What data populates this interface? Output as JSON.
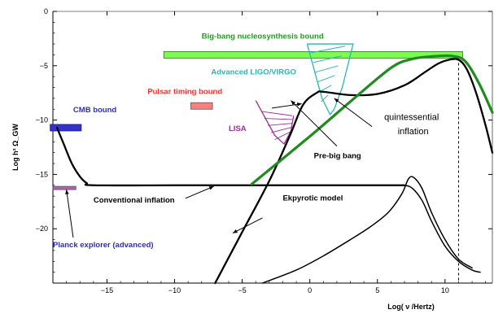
{
  "chart_data": {
    "type": "line",
    "xlabel": "Log( ν /Hertz)",
    "ylabel": "Log h² Ω_GW",
    "xlim": [
      -19,
      13.5
    ],
    "ylim": [
      -25,
      0
    ],
    "x_ticks": [
      -15,
      -10,
      -5,
      0,
      5,
      10
    ],
    "y_ticks": [
      0,
      -5,
      -10,
      -15,
      -20
    ],
    "grid": false,
    "series": [
      {
        "name": "Conventional inflation",
        "color": "#000000",
        "x": [
          -18.7,
          -18.2,
          -17.6,
          -17.0,
          -16.5,
          -16.0,
          -10.0,
          -5.0,
          0.0,
          5.0,
          7.0
        ],
        "y": [
          -10.7,
          -12.2,
          -14.0,
          -15.2,
          -15.8,
          -16.0,
          -16.0,
          -16.0,
          -16.0,
          -16.0,
          -16.0
        ]
      },
      {
        "name": "Pre-big bang",
        "color": "#000000",
        "x": [
          -7.0,
          -5.0,
          -3.0,
          -1.5,
          -0.5,
          0.5,
          1.0,
          3.0,
          5.0,
          7.0,
          8.5,
          9.5,
          10.3,
          11.0,
          11.6,
          12.3,
          13.0,
          13.5
        ],
        "y": [
          -25.0,
          -20.3,
          -15.6,
          -11.5,
          -8.6,
          -7.5,
          -7.4,
          -7.7,
          -7.6,
          -6.8,
          -5.6,
          -4.8,
          -4.45,
          -4.45,
          -5.3,
          -7.5,
          -10.5,
          -13.0
        ]
      },
      {
        "name": "quintessential inflation",
        "color": "#1e8c1e",
        "x": [
          -4.3,
          0.0,
          3.0,
          6.0,
          7.5,
          9.0,
          10.5,
          11.5,
          12.5,
          13.5
        ],
        "y": [
          -15.9,
          -11.5,
          -8.3,
          -5.2,
          -4.4,
          -4.15,
          -4.1,
          -4.6,
          -6.6,
          -9.3
        ]
      },
      {
        "name": "Ekpyrotic model",
        "color": "#000000",
        "x": [
          -3.5,
          -1.0,
          1.0,
          3.0,
          4.5,
          5.8,
          6.8,
          7.3,
          7.7,
          8.3,
          9.0,
          10.0,
          11.0,
          12.0
        ],
        "y": [
          -25.0,
          -23.8,
          -22.5,
          -21.0,
          -19.8,
          -18.5,
          -16.8,
          -15.4,
          -15.3,
          -16.3,
          -18.5,
          -21.0,
          -22.8,
          -23.6
        ]
      },
      {
        "name": "",
        "color": "#000000",
        "x": [
          6.8,
          7.5,
          8.3,
          9.0,
          10.0,
          11.0,
          12.0,
          12.6
        ],
        "y": [
          -16.0,
          -16.2,
          -17.4,
          -19.3,
          -21.6,
          -23.0,
          -23.8,
          -24.0
        ]
      }
    ],
    "bounds": [
      {
        "name": "Big-bang nucleosynthesis bound",
        "color": "#7cfc52",
        "x_range": [
          -10.8,
          11.3
        ],
        "y_range": [
          -3.7,
          -4.3
        ]
      },
      {
        "name": "Pulsar timing bound",
        "color": "#ff7f7f",
        "x_range": [
          -8.8,
          -7.2
        ],
        "y_range": [
          -8.4,
          -9.0
        ]
      },
      {
        "name": "CMB bound",
        "color": "#3333cc",
        "x_range": [
          -19.2,
          -16.9
        ],
        "y_range": [
          -10.4,
          -11.0
        ]
      },
      {
        "name": "Planck explorer (advanced)",
        "color": "#b15fb1",
        "x_range": [
          -19.0,
          -17.3
        ],
        "y_range": [
          -16.1,
          -16.4
        ]
      },
      {
        "name": "Advanced LIGO/VIRGO",
        "color": "#2bb5b5",
        "x_range": [
          -0.2,
          3.2
        ],
        "y_range": [
          -3.0,
          -9.5
        ]
      },
      {
        "name": "LISA",
        "color": "#9b2d9b",
        "x_range": [
          -4.0,
          -1.2
        ],
        "y_range": [
          -8.2,
          -12.2
        ]
      }
    ],
    "reference_lines": [
      {
        "x": 11.0,
        "style": "dashed"
      }
    ],
    "annotations": [
      {
        "text": "Big-bang nucleosynthesis bound",
        "color": "#1e9c1e",
        "x": -8.0,
        "y": -2.5,
        "bold": true
      },
      {
        "text": "Advanced LIGO/VIRGO",
        "color": "#2bb5b5",
        "x": -7.3,
        "y": -5.8,
        "bold": true
      },
      {
        "text": "Pulsar timing bound",
        "color": "#ff2a2a",
        "x": -12.0,
        "y": -7.6,
        "bold": true
      },
      {
        "text": "CMB bound",
        "color": "#2d2dbd",
        "x": -17.5,
        "y": -9.3,
        "bold": true
      },
      {
        "text": "LISA",
        "color": "#9b2d9b",
        "x": -6.0,
        "y": -11.0,
        "bold": true
      },
      {
        "text": "quintessential",
        "color": "#000000",
        "x": 5.5,
        "y": -10.0,
        "bold": false
      },
      {
        "text": "inflation",
        "color": "#000000",
        "x": 6.5,
        "y": -11.3,
        "bold": false
      },
      {
        "text": "Pre-big bang",
        "color": "#000000",
        "x": 0.3,
        "y": -13.5,
        "bold": true
      },
      {
        "text": "Conventional inflation",
        "color": "#000000",
        "x": -16.0,
        "y": -17.6,
        "bold": true
      },
      {
        "text": "Ekpyrotic model",
        "color": "#000000",
        "x": -2.0,
        "y": -17.4,
        "bold": true
      },
      {
        "text": "Planck explorer (advanced)",
        "color": "#2d2dbd",
        "x": -19.0,
        "y": -21.7,
        "bold": true
      }
    ]
  }
}
